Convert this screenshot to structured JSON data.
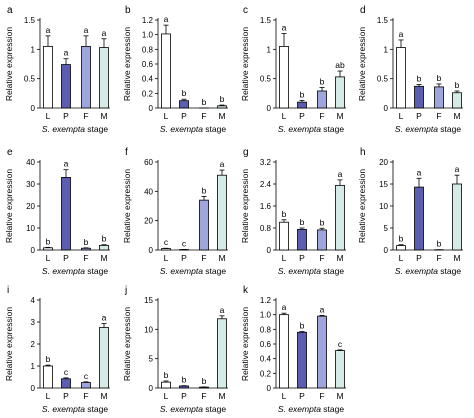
{
  "figure": {
    "ylabel": "Relative expression",
    "xlabel_species": "S. exempta",
    "xlabel_suffix": " stage",
    "categories": [
      "L",
      "P",
      "F",
      "M"
    ],
    "colors": {
      "L": "#ffffff",
      "P": "#5b5eb0",
      "F": "#9ea6dc",
      "M": "#d4ebe8",
      "stroke": "#000000"
    }
  },
  "chart_data": [
    {
      "panel": "a",
      "type": "bar",
      "categories": [
        "L",
        "P",
        "F",
        "M"
      ],
      "values": [
        1.05,
        0.74,
        1.05,
        1.03
      ],
      "errors": [
        0.18,
        0.1,
        0.18,
        0.15
      ],
      "letters": [
        "a",
        "a",
        "a",
        "a"
      ],
      "ylim": [
        0,
        1.5
      ],
      "yticks": [
        "0",
        "0.5",
        "1",
        "1.5"
      ]
    },
    {
      "panel": "b",
      "type": "bar",
      "categories": [
        "L",
        "P",
        "F",
        "M"
      ],
      "values": [
        1.01,
        0.1,
        0.0,
        0.03
      ],
      "errors": [
        0.12,
        0.02,
        0.0,
        0.01
      ],
      "letters": [
        "a",
        "b",
        "b",
        "b"
      ],
      "ylim": [
        0,
        1.2
      ],
      "yticks": [
        "0",
        "0.2",
        "0.4",
        "0.6",
        "0.8",
        "1.0",
        "1.2"
      ]
    },
    {
      "panel": "c",
      "type": "bar",
      "categories": [
        "L",
        "P",
        "F",
        "M"
      ],
      "values": [
        1.05,
        0.1,
        0.29,
        0.53
      ],
      "errors": [
        0.22,
        0.03,
        0.06,
        0.1
      ],
      "letters": [
        "a",
        "b",
        "b",
        "ab"
      ],
      "ylim": [
        0,
        1.5
      ],
      "yticks": [
        "0",
        "0.5",
        "1",
        "1.5"
      ]
    },
    {
      "panel": "d",
      "type": "bar",
      "categories": [
        "L",
        "P",
        "F",
        "M"
      ],
      "values": [
        1.03,
        0.37,
        0.36,
        0.26
      ],
      "errors": [
        0.13,
        0.03,
        0.05,
        0.03
      ],
      "letters": [
        "a",
        "b",
        "b",
        "b"
      ],
      "ylim": [
        0,
        1.5
      ],
      "yticks": [
        "0",
        "0.5",
        "1",
        "1.5"
      ]
    },
    {
      "panel": "e",
      "type": "bar",
      "categories": [
        "L",
        "P",
        "F",
        "M"
      ],
      "values": [
        1.0,
        33.0,
        0.8,
        2.1
      ],
      "errors": [
        0.2,
        3.5,
        0.2,
        0.3
      ],
      "letters": [
        "b",
        "a",
        "b",
        "b"
      ],
      "ylim": [
        0,
        40
      ],
      "yticks": [
        "0",
        "10",
        "20",
        "30",
        "40"
      ]
    },
    {
      "panel": "f",
      "type": "bar",
      "categories": [
        "L",
        "P",
        "F",
        "M"
      ],
      "values": [
        1.0,
        0.3,
        34.0,
        51.0
      ],
      "errors": [
        0.2,
        0.1,
        2.5,
        3.5
      ],
      "letters": [
        "c",
        "c",
        "b",
        "a"
      ],
      "ylim": [
        0,
        60
      ],
      "yticks": [
        "0",
        "20",
        "40",
        "60"
      ]
    },
    {
      "panel": "g",
      "type": "bar",
      "categories": [
        "L",
        "P",
        "F",
        "M"
      ],
      "values": [
        1.01,
        0.75,
        0.73,
        2.35
      ],
      "errors": [
        0.09,
        0.05,
        0.06,
        0.2
      ],
      "letters": [
        "b",
        "b",
        "b",
        "a"
      ],
      "ylim": [
        0,
        3.2
      ],
      "yticks": [
        "0",
        "0.8",
        "1.6",
        "2.4",
        "3.2"
      ]
    },
    {
      "panel": "h",
      "type": "bar",
      "categories": [
        "L",
        "P",
        "F",
        "M"
      ],
      "values": [
        1.0,
        14.3,
        0.05,
        15.0
      ],
      "errors": [
        0.2,
        2.0,
        0.02,
        2.0
      ],
      "letters": [
        "b",
        "a",
        "b",
        "a"
      ],
      "ylim": [
        0,
        20
      ],
      "yticks": [
        "0",
        "5",
        "10",
        "15",
        "20"
      ]
    },
    {
      "panel": "i",
      "type": "bar",
      "categories": [
        "L",
        "P",
        "F",
        "M"
      ],
      "values": [
        1.0,
        0.42,
        0.25,
        2.75
      ],
      "errors": [
        0.04,
        0.04,
        0.03,
        0.18
      ],
      "letters": [
        "b",
        "c",
        "c",
        "a"
      ],
      "ylim": [
        0,
        4
      ],
      "yticks": [
        "0",
        "1",
        "2",
        "3",
        "4"
      ]
    },
    {
      "panel": "j",
      "type": "bar",
      "categories": [
        "L",
        "P",
        "F",
        "M"
      ],
      "values": [
        1.0,
        0.35,
        0.15,
        11.8
      ],
      "errors": [
        0.2,
        0.05,
        0.03,
        0.5
      ],
      "letters": [
        "b",
        "b",
        "b",
        "a"
      ],
      "ylim": [
        0,
        15
      ],
      "yticks": [
        "0",
        "5",
        "10",
        "15"
      ]
    },
    {
      "panel": "k",
      "type": "bar",
      "categories": [
        "L",
        "P",
        "F",
        "M"
      ],
      "values": [
        1.0,
        0.76,
        0.98,
        0.51
      ],
      "errors": [
        0.02,
        0.01,
        0.01,
        0.01
      ],
      "letters": [
        "a",
        "b",
        "a",
        "c"
      ],
      "ylim": [
        0,
        1.2
      ],
      "yticks": [
        "0",
        "0.2",
        "0.4",
        "0.6",
        "0.8",
        "1.0",
        "1.2"
      ]
    }
  ]
}
